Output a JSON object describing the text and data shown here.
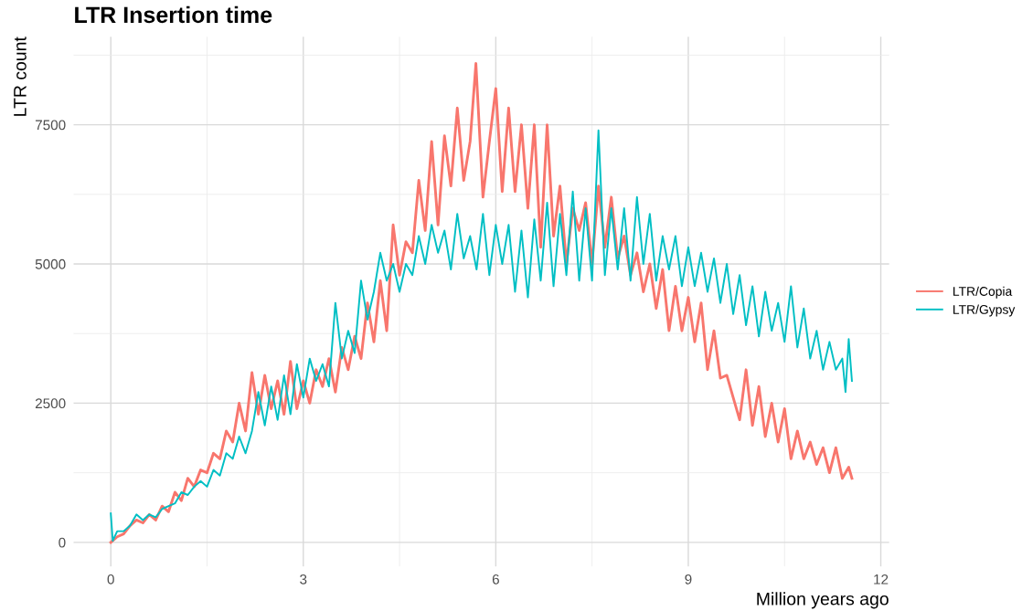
{
  "chart_data": {
    "type": "line",
    "title": "LTR Insertion time",
    "xlabel": "Million years ago",
    "ylabel": "LTR count",
    "xlim": [
      -0.58,
      12.13
    ],
    "ylim": [
      -432,
      9082
    ],
    "xticks": [
      0,
      3,
      6,
      9,
      12
    ],
    "yticks": [
      0,
      2500,
      5000,
      7500
    ],
    "grid": true,
    "legend": "right",
    "line_style": "solid",
    "marker": "none",
    "series": [
      {
        "name": "LTR/Copia",
        "color": "#f8766d",
        "x": [
          0,
          0.1,
          0.2,
          0.3,
          0.4,
          0.5,
          0.6,
          0.7,
          0.8,
          0.9,
          1.0,
          1.1,
          1.2,
          1.3,
          1.4,
          1.5,
          1.6,
          1.7,
          1.8,
          1.9,
          2.0,
          2.1,
          2.2,
          2.3,
          2.4,
          2.5,
          2.6,
          2.7,
          2.8,
          2.9,
          3.0,
          3.1,
          3.2,
          3.3,
          3.4,
          3.5,
          3.6,
          3.7,
          3.8,
          3.9,
          4.0,
          4.1,
          4.2,
          4.3,
          4.4,
          4.5,
          4.6,
          4.7,
          4.8,
          4.9,
          5.0,
          5.1,
          5.2,
          5.3,
          5.4,
          5.5,
          5.6,
          5.69,
          5.8,
          5.9,
          6.0,
          6.1,
          6.2,
          6.3,
          6.4,
          6.5,
          6.6,
          6.7,
          6.8,
          6.9,
          7.0,
          7.1,
          7.2,
          7.3,
          7.4,
          7.5,
          7.6,
          7.7,
          7.8,
          7.9,
          8.0,
          8.1,
          8.2,
          8.3,
          8.4,
          8.5,
          8.6,
          8.7,
          8.8,
          8.9,
          9.0,
          9.1,
          9.2,
          9.3,
          9.4,
          9.5,
          9.6,
          9.7,
          9.8,
          9.9,
          10.0,
          10.1,
          10.2,
          10.3,
          10.4,
          10.5,
          10.6,
          10.7,
          10.8,
          10.9,
          11.0,
          11.1,
          11.2,
          11.3,
          11.4,
          11.5,
          11.55
        ],
        "values": [
          0,
          100,
          150,
          300,
          400,
          350,
          500,
          400,
          650,
          550,
          900,
          750,
          1150,
          1000,
          1300,
          1250,
          1600,
          1500,
          2000,
          1800,
          2500,
          2000,
          3050,
          2300,
          3000,
          2400,
          2900,
          2300,
          3250,
          2400,
          2900,
          2500,
          3100,
          2800,
          3300,
          2700,
          3500,
          3100,
          3700,
          3300,
          4300,
          3600,
          4700,
          3800,
          5700,
          4800,
          5400,
          5200,
          6500,
          5600,
          7200,
          5700,
          7300,
          6400,
          7800,
          6500,
          7200,
          8600,
          6200,
          7200,
          8150,
          6300,
          7800,
          6300,
          7500,
          6000,
          7500,
          5300,
          7500,
          5500,
          6400,
          5000,
          6000,
          5600,
          6100,
          5000,
          6400,
          5300,
          6200,
          5100,
          5500,
          4800,
          5200,
          4500,
          5000,
          4200,
          4900,
          3800,
          4600,
          3800,
          4400,
          3600,
          4300,
          3100,
          3800,
          2950,
          3000,
          2600,
          2200,
          3100,
          2100,
          2800,
          1900,
          2500,
          1800,
          2400,
          1500,
          2000,
          1500,
          1800,
          1400,
          1700,
          1250,
          1700,
          1150,
          1350,
          1150
        ]
      },
      {
        "name": "LTR/Gypsy",
        "color": "#00bfc4",
        "x": [
          0,
          0.03,
          0.1,
          0.2,
          0.3,
          0.4,
          0.5,
          0.6,
          0.7,
          0.8,
          0.9,
          1.0,
          1.1,
          1.2,
          1.3,
          1.4,
          1.5,
          1.6,
          1.7,
          1.8,
          1.9,
          2.0,
          2.1,
          2.2,
          2.3,
          2.4,
          2.5,
          2.6,
          2.7,
          2.8,
          2.9,
          3.0,
          3.1,
          3.2,
          3.3,
          3.4,
          3.5,
          3.6,
          3.7,
          3.8,
          3.9,
          4.0,
          4.1,
          4.2,
          4.3,
          4.4,
          4.5,
          4.6,
          4.7,
          4.8,
          4.9,
          5.0,
          5.1,
          5.2,
          5.3,
          5.4,
          5.5,
          5.6,
          5.7,
          5.8,
          5.9,
          6.0,
          6.1,
          6.2,
          6.3,
          6.4,
          6.5,
          6.6,
          6.7,
          6.8,
          6.9,
          7.0,
          7.1,
          7.2,
          7.3,
          7.4,
          7.5,
          7.6,
          7.7,
          7.8,
          7.9,
          8.0,
          8.1,
          8.2,
          8.3,
          8.4,
          8.5,
          8.6,
          8.7,
          8.8,
          8.9,
          9.0,
          9.1,
          9.2,
          9.3,
          9.4,
          9.5,
          9.6,
          9.7,
          9.8,
          9.9,
          10.0,
          10.1,
          10.2,
          10.3,
          10.4,
          10.5,
          10.6,
          10.7,
          10.8,
          10.9,
          11.0,
          11.1,
          11.2,
          11.3,
          11.4,
          11.45,
          11.5,
          11.55
        ],
        "values": [
          520,
          30,
          200,
          200,
          300,
          500,
          400,
          500,
          450,
          600,
          650,
          700,
          900,
          850,
          1000,
          1100,
          1000,
          1300,
          1200,
          1600,
          1500,
          1900,
          1600,
          2000,
          2700,
          2100,
          2800,
          2200,
          3000,
          2300,
          3200,
          2600,
          3300,
          2900,
          3200,
          2800,
          4300,
          3300,
          3800,
          3400,
          4700,
          4000,
          4500,
          5200,
          4700,
          5000,
          4500,
          5000,
          4800,
          5500,
          5000,
          5700,
          5200,
          5600,
          4900,
          5900,
          5100,
          5500,
          4900,
          5900,
          4800,
          5700,
          5000,
          5700,
          4500,
          5600,
          4400,
          5800,
          4700,
          6100,
          4600,
          5900,
          4800,
          6300,
          4700,
          6000,
          4700,
          7400,
          4800,
          6000,
          4900,
          6000,
          4700,
          6200,
          5000,
          5900,
          4700,
          5500,
          4900,
          5500,
          4600,
          5300,
          4600,
          5200,
          4500,
          5100,
          4300,
          5000,
          4100,
          4800,
          3900,
          4600,
          3700,
          4500,
          3800,
          4300,
          3600,
          4600,
          3500,
          4200,
          3300,
          3800,
          3100,
          3600,
          3100,
          3300,
          2700,
          3650,
          2900
        ]
      }
    ]
  }
}
